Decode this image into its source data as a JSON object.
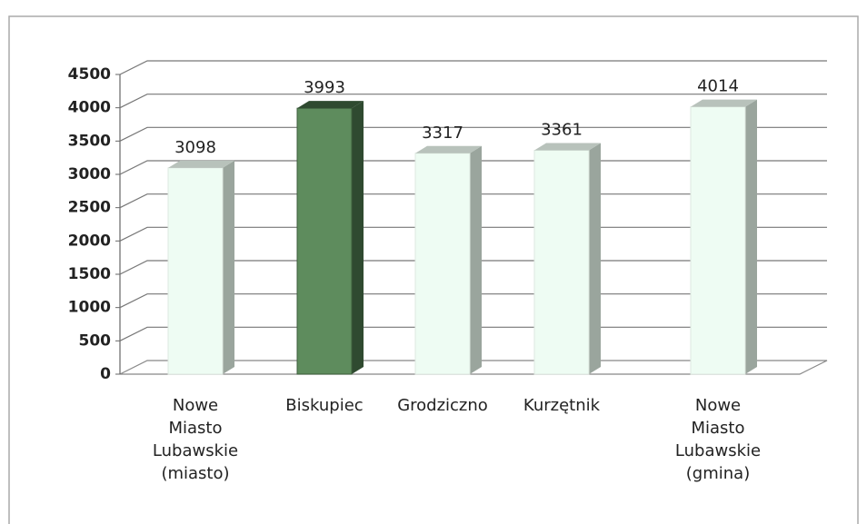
{
  "chart_data": {
    "type": "bar3d",
    "categories": [
      "Nowe Miasto Lubawskie (miasto)",
      "Biskupiec",
      "Grodziczno",
      "Kurzętnik",
      "Nowe Miasto Lubawskie (gmina)"
    ],
    "values": [
      3098,
      3993,
      3317,
      3361,
      4014
    ],
    "colors": [
      "#eefcf3",
      "#5e8c5d",
      "#eefcf3",
      "#eefcf3",
      "#eefcf3"
    ],
    "ylim": [
      0,
      4500
    ],
    "yticks": [
      0,
      500,
      1000,
      1500,
      2000,
      2500,
      3000,
      3500,
      4000,
      4500
    ],
    "grid": true
  }
}
